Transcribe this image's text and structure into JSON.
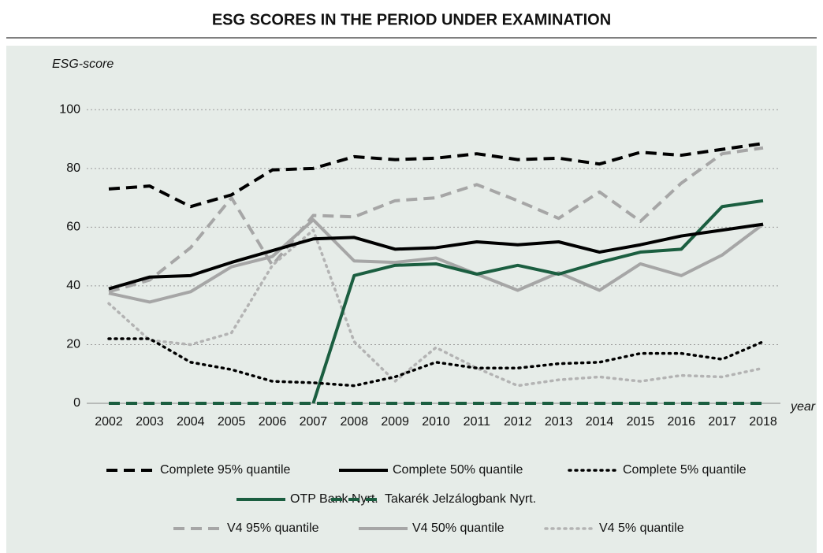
{
  "chart_data": {
    "type": "line",
    "title": "ESG SCORES IN THE PERIOD UNDER EXAMINATION",
    "y_label": "ESG-score",
    "x_label": "year",
    "categories": [
      "2002",
      "2003",
      "2004",
      "2005",
      "2006",
      "2007",
      "2008",
      "2009",
      "2010",
      "2011",
      "2012",
      "2013",
      "2014",
      "2015",
      "2016",
      "2017",
      "2018"
    ],
    "ylim": [
      0,
      110
    ],
    "yticks": [
      0,
      20,
      40,
      60,
      80,
      100
    ],
    "grid": true,
    "legend": "bottom",
    "series": [
      {
        "name": "Complete 95% quantile",
        "color": "#000000",
        "dash": "dashed",
        "values": [
          73,
          74,
          67,
          71,
          79.5,
          80,
          84,
          83,
          83.5,
          85,
          83,
          83.5,
          81.5,
          85.5,
          84.5,
          86.5,
          88.5
        ]
      },
      {
        "name": "Complete 50% quantile",
        "color": "#000000",
        "dash": "solid",
        "values": [
          39,
          43,
          43.5,
          48,
          52,
          56,
          56.5,
          52.5,
          53,
          55,
          54,
          55,
          51.5,
          54,
          57,
          59,
          61
        ]
      },
      {
        "name": "Complete 5% quantile",
        "color": "#000000",
        "dash": "dotted",
        "values": [
          22,
          22,
          14,
          11.5,
          7.5,
          7,
          6,
          9,
          14,
          12,
          12,
          13.5,
          14,
          17,
          17,
          15,
          21
        ]
      },
      {
        "name": "OTP Bank Nyrt.",
        "color": "#1b5e40",
        "dash": "solid",
        "values": [
          null,
          null,
          null,
          null,
          null,
          0,
          43.5,
          47,
          47.5,
          44,
          47,
          44,
          48,
          51.5,
          52.5,
          67,
          69
        ]
      },
      {
        "name": "Takarék Jelzálogbank Nyrt.",
        "color": "#1b5e40",
        "dash": "dashed",
        "values": [
          0,
          0,
          0,
          0,
          0,
          0,
          0,
          0,
          0,
          0,
          0,
          0,
          0,
          0,
          0,
          0,
          0
        ]
      },
      {
        "name": "V4 95% quantile",
        "color": "#a6a6a6",
        "dash": "dashed",
        "values": [
          38,
          42,
          53,
          70,
          47,
          64,
          63.5,
          69,
          70,
          74.5,
          69,
          63,
          72,
          62,
          75,
          85,
          87
        ]
      },
      {
        "name": "V4 50% quantile",
        "color": "#a6a6a6",
        "dash": "solid",
        "values": [
          37.5,
          34.5,
          38,
          46.5,
          50,
          62.5,
          48.5,
          48,
          49.5,
          44,
          38.5,
          44.5,
          38.5,
          47.5,
          43.5,
          50.5,
          61
        ]
      },
      {
        "name": "V4 5% quantile",
        "color": "#b3b3b3",
        "dash": "dotted",
        "values": [
          34,
          21.5,
          20,
          24,
          47,
          59,
          21,
          7.5,
          19,
          12,
          6,
          8,
          9,
          7.5,
          9.5,
          9,
          12
        ]
      }
    ]
  }
}
